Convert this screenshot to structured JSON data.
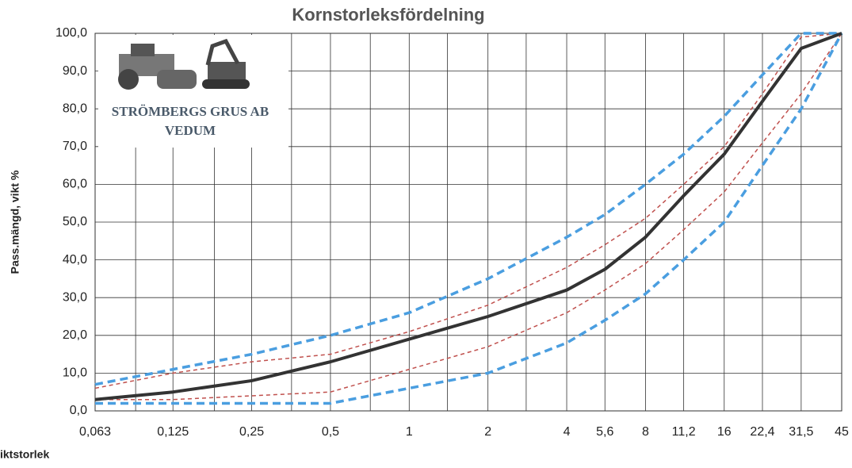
{
  "chart_data": {
    "type": "line",
    "title": "Kornstorleksfördelning",
    "y_label": "Pass.mängd, vikt %",
    "x_label": "iktstorlek",
    "logo_text": [
      "STRÖMBERGS GRUS AB",
      "VEDUM"
    ],
    "x_scale": "log",
    "grid": true,
    "x": [
      0.063,
      0.125,
      0.25,
      0.5,
      1,
      2,
      4,
      5.6,
      8,
      11.2,
      16,
      22.4,
      31.5,
      45
    ],
    "xlim": [
      0.063,
      45
    ],
    "xticks": [
      {
        "value": 0.063,
        "label": "0,063"
      },
      {
        "value": 0.125,
        "label": "0,125"
      },
      {
        "value": 0.25,
        "label": "0,25"
      },
      {
        "value": 0.5,
        "label": "0,5"
      },
      1,
      2,
      4,
      {
        "value": 5.6,
        "label": "5,6"
      },
      8,
      {
        "value": 11.2,
        "label": "11,2"
      },
      16,
      {
        "value": 22.4,
        "label": "22,4"
      },
      {
        "value": 31.5,
        "label": "31,5"
      },
      45
    ],
    "xminorticks": [
      0.09,
      0.18,
      0.355,
      0.71,
      1.4,
      2.8
    ],
    "ylim": [
      0,
      100
    ],
    "yticks": [
      {
        "value": 0,
        "label": "0,0"
      },
      {
        "value": 10,
        "label": "10,0"
      },
      {
        "value": 20,
        "label": "20,0"
      },
      {
        "value": 30,
        "label": "30,0"
      },
      {
        "value": 40,
        "label": "40,0"
      },
      {
        "value": 50,
        "label": "50,0"
      },
      {
        "value": 60,
        "label": "60,0"
      },
      {
        "value": 70,
        "label": "70,0"
      },
      {
        "value": 80,
        "label": "80,0"
      },
      {
        "value": 90,
        "label": "90,0"
      },
      {
        "value": 100,
        "label": "100,0"
      }
    ],
    "series": [
      {
        "color": "#c0504d",
        "line_style": "dashed-thin",
        "values": [
          6,
          10,
          13,
          15,
          21,
          28,
          38,
          44,
          51,
          60,
          70,
          84,
          99,
          100
        ]
      },
      {
        "color": "#c0504d",
        "line_style": "dashed-thin",
        "values": [
          3,
          3,
          4,
          5,
          11,
          17,
          26,
          32,
          39,
          48,
          58,
          71,
          84,
          100
        ]
      },
      {
        "color": "#4a9ee0",
        "line_style": "dashed",
        "values": [
          7,
          11,
          15,
          20,
          26,
          35,
          46,
          52,
          60,
          68,
          78,
          89,
          100,
          100
        ]
      },
      {
        "color": "#4a9ee0",
        "line_style": "dashed",
        "values": [
          2,
          2,
          2,
          2,
          6,
          10,
          18,
          24,
          31,
          40,
          50,
          65,
          80,
          100
        ]
      },
      {
        "color": "#333333",
        "line_style": "solid",
        "values": [
          3,
          5,
          8,
          13,
          19,
          25,
          32,
          37.5,
          46,
          57,
          68,
          82,
          96,
          100
        ]
      }
    ]
  }
}
